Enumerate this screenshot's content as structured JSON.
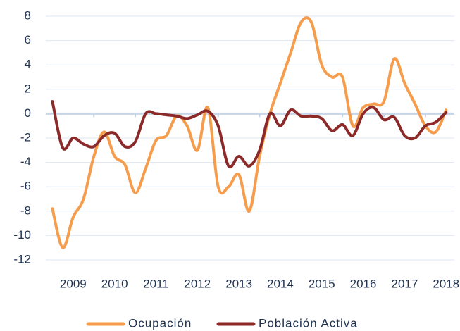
{
  "chart_data": {
    "type": "line",
    "x": [
      2008.5,
      2008.75,
      2009,
      2009.25,
      2009.5,
      2009.75,
      2010,
      2010.25,
      2010.5,
      2010.75,
      2011,
      2011.25,
      2011.5,
      2011.75,
      2012,
      2012.25,
      2012.5,
      2012.75,
      2013,
      2013.25,
      2013.5,
      2013.75,
      2014,
      2014.25,
      2014.5,
      2014.75,
      2015,
      2015.25,
      2015.5,
      2015.75,
      2016,
      2016.25,
      2016.5,
      2016.75,
      2017,
      2017.25,
      2017.5,
      2017.75,
      2018
    ],
    "series": [
      {
        "name": "Ocupación",
        "color": "#f59d4c",
        "values": [
          -7.8,
          -11,
          -8.5,
          -7,
          -3.5,
          -1.5,
          -3.5,
          -4.2,
          -6.5,
          -4.5,
          -2.2,
          -1.8,
          -0.2,
          -1,
          -3,
          0.5,
          -6,
          -6,
          -5,
          -8,
          -3.5,
          0,
          2.5,
          5,
          7.5,
          7.5,
          4,
          3,
          3,
          -1,
          0.5,
          0.8,
          1,
          4.5,
          2.5,
          0.8,
          -1,
          -1.5,
          0.3
        ]
      },
      {
        "name": "Población Activa",
        "color": "#8c2a2a",
        "values": [
          1,
          -2.8,
          -2,
          -2.5,
          -2.7,
          -1.8,
          -1.6,
          -2.7,
          -2.3,
          0,
          0,
          -0.1,
          -0.2,
          -0.4,
          -0.1,
          0.2,
          -1,
          -4.3,
          -3.5,
          -4.3,
          -3,
          0,
          -1,
          0.3,
          -0.2,
          -0.2,
          -0.4,
          -1.4,
          -0.9,
          -1.8,
          0,
          0.5,
          -0.5,
          -0.3,
          -1.8,
          -2,
          -1,
          -0.7,
          0.1
        ]
      }
    ],
    "xlim": [
      2008.34,
      2018.2
    ],
    "xticks": [
      2009,
      2010,
      2011,
      2012,
      2013,
      2014,
      2015,
      2016,
      2017,
      2018
    ],
    "ylim": [
      -12,
      8
    ],
    "yticks": [
      -12,
      -10,
      -8,
      -6,
      -4,
      -2,
      0,
      2,
      4,
      6,
      8
    ],
    "grid": true,
    "legend": "bottom"
  }
}
